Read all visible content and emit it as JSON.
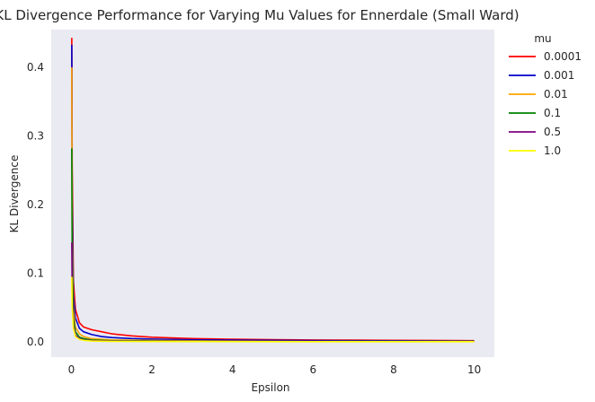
{
  "chart_data": {
    "type": "line",
    "title": "KL Divergence Performance for Varying Mu Values for Ennerdale (Small Ward)",
    "xlabel": "Epsilon",
    "ylabel": "KL Divergence",
    "xlim": [
      -0.5,
      10.5
    ],
    "ylim": [
      -0.022,
      0.455
    ],
    "xticks": [
      0,
      2,
      4,
      6,
      8,
      10
    ],
    "yticks": [
      0.0,
      0.1,
      0.2,
      0.3,
      0.4
    ],
    "xtick_labels": [
      "0",
      "2",
      "4",
      "6",
      "8",
      "10"
    ],
    "ytick_labels": [
      "0.0",
      "0.1",
      "0.2",
      "0.3",
      "0.4"
    ],
    "grid": false,
    "background": "#eaeaf2",
    "legend": {
      "title": "mu",
      "placement": "outside-top-right"
    },
    "series": [
      {
        "name": "0.0001",
        "color": "#ff0000",
        "x": [
          0.01,
          0.02,
          0.05,
          0.1,
          0.2,
          0.3,
          0.5,
          0.75,
          1.0,
          1.5,
          2.0,
          2.5,
          3.0,
          4.0,
          5.0,
          6.0,
          7.0,
          8.0,
          9.0,
          10.0
        ],
        "y": [
          0.443,
          0.26,
          0.09,
          0.048,
          0.028,
          0.022,
          0.018,
          0.015,
          0.012,
          0.009,
          0.007,
          0.006,
          0.005,
          0.004,
          0.0035,
          0.003,
          0.0027,
          0.0024,
          0.0022,
          0.002
        ]
      },
      {
        "name": "0.001",
        "color": "#0000cc",
        "x": [
          0.01,
          0.02,
          0.05,
          0.1,
          0.2,
          0.3,
          0.5,
          0.75,
          1.0,
          1.5,
          2.0,
          3.0,
          4.0,
          5.0,
          6.0,
          8.0,
          10.0
        ],
        "y": [
          0.433,
          0.2,
          0.07,
          0.035,
          0.02,
          0.015,
          0.011,
          0.008,
          0.0065,
          0.005,
          0.0042,
          0.0033,
          0.0028,
          0.0024,
          0.0021,
          0.0017,
          0.0014
        ]
      },
      {
        "name": "0.01",
        "color": "#ffa500",
        "x": [
          0.01,
          0.02,
          0.05,
          0.1,
          0.2,
          0.3,
          0.5,
          1.0,
          2.0,
          3.0,
          4.0,
          6.0,
          8.0,
          10.0
        ],
        "y": [
          0.4,
          0.15,
          0.05,
          0.022,
          0.012,
          0.008,
          0.005,
          0.003,
          0.0022,
          0.0018,
          0.0015,
          0.0012,
          0.001,
          0.0009
        ]
      },
      {
        "name": "0.1",
        "color": "#008000",
        "x": [
          0.01,
          0.02,
          0.05,
          0.1,
          0.2,
          0.3,
          0.5,
          1.0,
          2.0,
          4.0,
          6.0,
          8.0,
          10.0
        ],
        "y": [
          0.282,
          0.12,
          0.035,
          0.015,
          0.007,
          0.005,
          0.003,
          0.002,
          0.0015,
          0.0012,
          0.001,
          0.0009,
          0.0008
        ]
      },
      {
        "name": "0.5",
        "color": "#800080",
        "x": [
          0.01,
          0.02,
          0.05,
          0.1,
          0.2,
          0.3,
          0.5,
          1.0,
          2.0,
          4.0,
          6.0,
          8.0,
          10.0
        ],
        "y": [
          0.145,
          0.07,
          0.025,
          0.01,
          0.005,
          0.003,
          0.002,
          0.0015,
          0.0012,
          0.001,
          0.0009,
          0.0008,
          0.0007
        ]
      },
      {
        "name": "1.0",
        "color": "#ffff00",
        "x": [
          0.01,
          0.02,
          0.05,
          0.1,
          0.2,
          0.3,
          0.5,
          1.0,
          2.0,
          4.0,
          6.0,
          8.0,
          10.0
        ],
        "y": [
          0.095,
          0.05,
          0.02,
          0.008,
          0.004,
          0.0025,
          0.0015,
          0.001,
          0.0008,
          0.0006,
          0.0005,
          0.0005,
          0.0004
        ]
      }
    ]
  }
}
